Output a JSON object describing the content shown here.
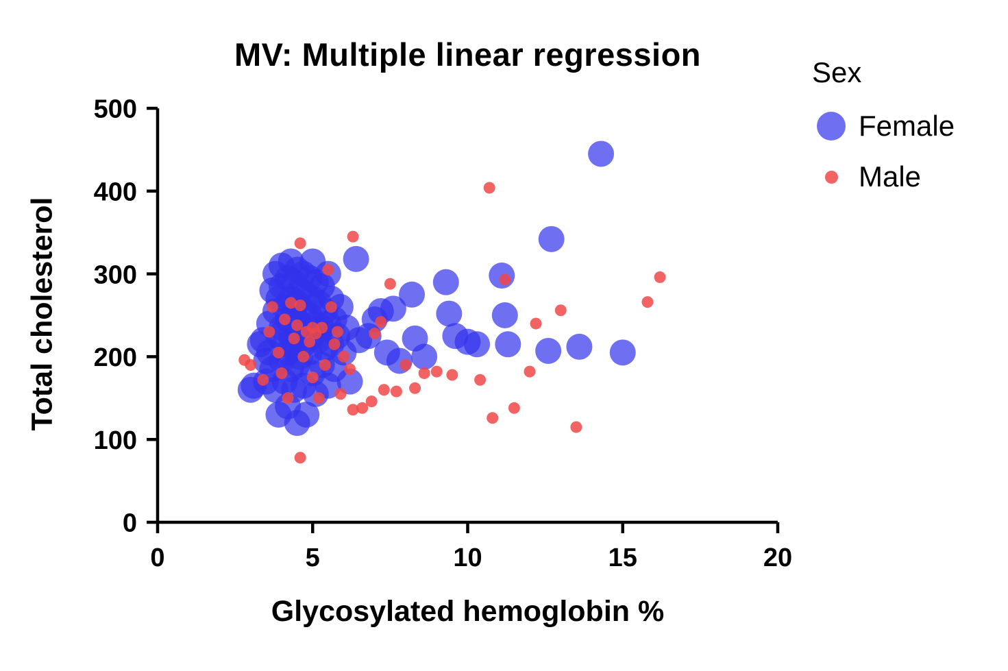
{
  "chart_data": {
    "type": "scatter",
    "title": "MV: Multiple linear regression",
    "xlabel": "Glycosylated hemoglobin %",
    "ylabel": "Total cholesterol",
    "xlim": [
      0,
      20
    ],
    "ylim": [
      0,
      500
    ],
    "x_ticks": [
      "0",
      "5",
      "10",
      "15",
      "20"
    ],
    "y_ticks": [
      "0",
      "100",
      "200",
      "300",
      "400",
      "500"
    ],
    "grid": false,
    "legend_position": "top-right",
    "legend_title": "Sex",
    "axis_color": "#000000",
    "series": [
      {
        "name": "Female",
        "color": "#3232ec",
        "opacity": 0.7,
        "marker_radius": 19,
        "points": [
          [
            3.0,
            160
          ],
          [
            3.1,
            165
          ],
          [
            3.3,
            215
          ],
          [
            3.4,
            220
          ],
          [
            3.5,
            195
          ],
          [
            3.5,
            170
          ],
          [
            3.6,
            240
          ],
          [
            3.6,
            205
          ],
          [
            3.7,
            280
          ],
          [
            3.7,
            185
          ],
          [
            3.8,
            300
          ],
          [
            3.8,
            255
          ],
          [
            3.8,
            160
          ],
          [
            3.9,
            270
          ],
          [
            3.9,
            225
          ],
          [
            3.9,
            130
          ],
          [
            4.0,
            310
          ],
          [
            4.0,
            285
          ],
          [
            4.0,
            235
          ],
          [
            4.0,
            195
          ],
          [
            4.1,
            260
          ],
          [
            4.1,
            215
          ],
          [
            4.1,
            170
          ],
          [
            4.2,
            295
          ],
          [
            4.2,
            245
          ],
          [
            4.2,
            205
          ],
          [
            4.2,
            140
          ],
          [
            4.3,
            315
          ],
          [
            4.3,
            270
          ],
          [
            4.3,
            225
          ],
          [
            4.3,
            185
          ],
          [
            4.4,
            290
          ],
          [
            4.4,
            250
          ],
          [
            4.4,
            210
          ],
          [
            4.4,
            160
          ],
          [
            4.5,
            305
          ],
          [
            4.5,
            265
          ],
          [
            4.5,
            230
          ],
          [
            4.5,
            190
          ],
          [
            4.5,
            120
          ],
          [
            4.6,
            280
          ],
          [
            4.6,
            240
          ],
          [
            4.6,
            200
          ],
          [
            4.7,
            300
          ],
          [
            4.7,
            255
          ],
          [
            4.7,
            215
          ],
          [
            4.7,
            165
          ],
          [
            4.8,
            275
          ],
          [
            4.8,
            235
          ],
          [
            4.8,
            130
          ],
          [
            4.9,
            295
          ],
          [
            4.9,
            250
          ],
          [
            4.9,
            205
          ],
          [
            5.0,
            315
          ],
          [
            5.0,
            270
          ],
          [
            5.0,
            225
          ],
          [
            5.0,
            180
          ],
          [
            5.1,
            290
          ],
          [
            5.1,
            240
          ],
          [
            5.1,
            155
          ],
          [
            5.2,
            265
          ],
          [
            5.2,
            220
          ],
          [
            5.3,
            285
          ],
          [
            5.3,
            235
          ],
          [
            5.3,
            190
          ],
          [
            5.4,
            255
          ],
          [
            5.4,
            210
          ],
          [
            5.5,
            300
          ],
          [
            5.5,
            240
          ],
          [
            5.5,
            165
          ],
          [
            5.6,
            270
          ],
          [
            5.6,
            215
          ],
          [
            5.7,
            245
          ],
          [
            5.7,
            185
          ],
          [
            5.8,
            225
          ],
          [
            5.9,
            260
          ],
          [
            6.0,
            205
          ],
          [
            6.1,
            235
          ],
          [
            6.2,
            170
          ],
          [
            6.4,
            318
          ],
          [
            6.5,
            220
          ],
          [
            6.8,
            225
          ],
          [
            7.0,
            245
          ],
          [
            7.2,
            255
          ],
          [
            7.4,
            205
          ],
          [
            7.6,
            258
          ],
          [
            7.8,
            195
          ],
          [
            8.2,
            275
          ],
          [
            8.3,
            222
          ],
          [
            8.6,
            200
          ],
          [
            9.3,
            290
          ],
          [
            9.4,
            252
          ],
          [
            9.6,
            225
          ],
          [
            10.0,
            218
          ],
          [
            10.3,
            215
          ],
          [
            11.1,
            298
          ],
          [
            11.2,
            250
          ],
          [
            11.3,
            215
          ],
          [
            12.6,
            207
          ],
          [
            12.7,
            342
          ],
          [
            13.6,
            212
          ],
          [
            14.3,
            445
          ],
          [
            15.0,
            205
          ]
        ]
      },
      {
        "name": "Male",
        "color": "#f04848",
        "opacity": 0.85,
        "marker_radius": 8.5,
        "points": [
          [
            2.8,
            196
          ],
          [
            3.0,
            190
          ],
          [
            3.4,
            172
          ],
          [
            3.6,
            230
          ],
          [
            3.7,
            260
          ],
          [
            3.9,
            205
          ],
          [
            4.0,
            180
          ],
          [
            4.1,
            245
          ],
          [
            4.2,
            150
          ],
          [
            4.3,
            265
          ],
          [
            4.4,
            222
          ],
          [
            4.5,
            238
          ],
          [
            4.6,
            337
          ],
          [
            4.6,
            262
          ],
          [
            4.6,
            78
          ],
          [
            4.7,
            200
          ],
          [
            4.8,
            230
          ],
          [
            4.9,
            218
          ],
          [
            5.0,
            235
          ],
          [
            5.0,
            175
          ],
          [
            5.1,
            228
          ],
          [
            5.2,
            150
          ],
          [
            5.3,
            235
          ],
          [
            5.4,
            190
          ],
          [
            5.5,
            305
          ],
          [
            5.6,
            260
          ],
          [
            5.7,
            215
          ],
          [
            5.8,
            230
          ],
          [
            5.9,
            155
          ],
          [
            6.0,
            200
          ],
          [
            6.2,
            185
          ],
          [
            6.3,
            345
          ],
          [
            6.3,
            136
          ],
          [
            6.6,
            138
          ],
          [
            6.9,
            146
          ],
          [
            7.0,
            228
          ],
          [
            7.2,
            242
          ],
          [
            7.3,
            160
          ],
          [
            7.5,
            288
          ],
          [
            7.7,
            158
          ],
          [
            8.0,
            190
          ],
          [
            8.3,
            162
          ],
          [
            8.6,
            180
          ],
          [
            9.0,
            182
          ],
          [
            9.5,
            178
          ],
          [
            10.4,
            172
          ],
          [
            10.7,
            404
          ],
          [
            10.8,
            126
          ],
          [
            11.2,
            293
          ],
          [
            11.5,
            138
          ],
          [
            12.0,
            182
          ],
          [
            12.2,
            240
          ],
          [
            13.0,
            256
          ],
          [
            13.5,
            115
          ],
          [
            15.8,
            266
          ],
          [
            16.2,
            296
          ]
        ]
      }
    ]
  }
}
